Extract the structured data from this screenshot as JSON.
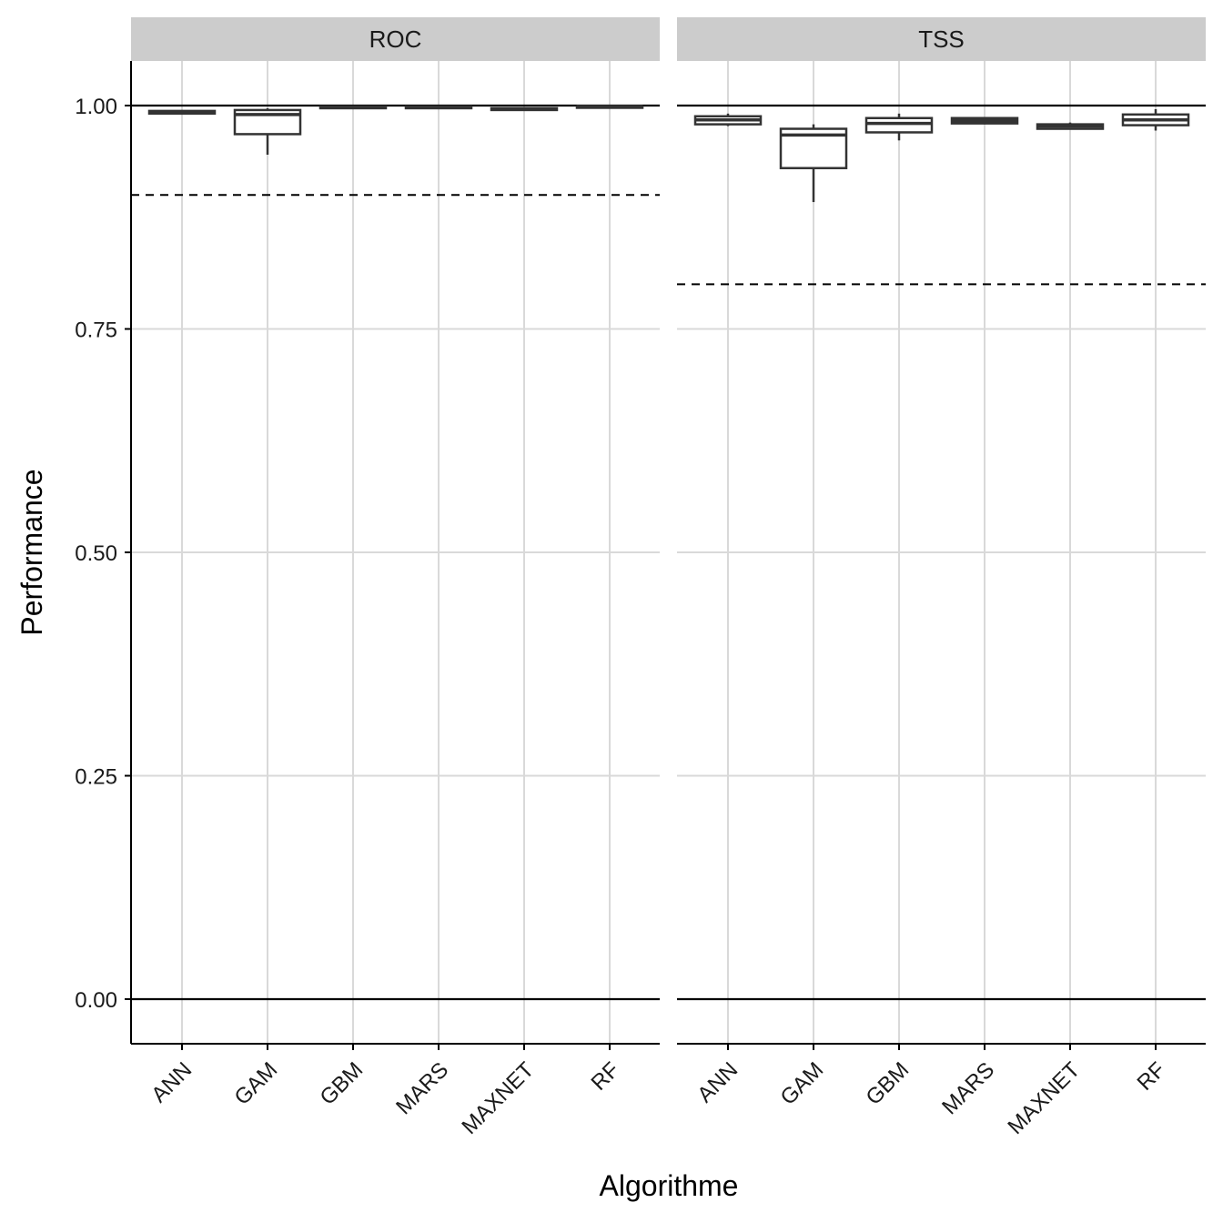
{
  "chart_data": {
    "type": "boxplot",
    "xlabel": "Algorithme",
    "ylabel": "Performance",
    "ylim": [
      -0.05,
      1.05
    ],
    "yticks": [
      "0.00",
      "0.25",
      "0.50",
      "0.75",
      "1.00"
    ],
    "ytick_values": [
      0,
      0.25,
      0.5,
      0.75,
      1.0
    ],
    "grid": true,
    "categories": [
      "ANN",
      "GAM",
      "GBM",
      "MARS",
      "MAXNET",
      "RF"
    ],
    "reference_lines": {
      "solid": [
        0,
        1
      ]
    },
    "panels": [
      {
        "name": "ROC",
        "threshold": 0.9,
        "boxes": [
          {
            "category": "ANN",
            "min": 0.99,
            "q1": 0.991,
            "median": 0.992,
            "q3": 0.994,
            "max": 0.995
          },
          {
            "category": "GAM",
            "min": 0.945,
            "q1": 0.968,
            "median": 0.99,
            "q3": 0.995,
            "max": 0.997
          },
          {
            "category": "GBM",
            "min": 0.996,
            "q1": 0.997,
            "median": 0.998,
            "q3": 0.999,
            "max": 0.999
          },
          {
            "category": "MARS",
            "min": 0.996,
            "q1": 0.997,
            "median": 0.998,
            "q3": 0.999,
            "max": 0.999
          },
          {
            "category": "MAXNET",
            "min": 0.994,
            "q1": 0.995,
            "median": 0.996,
            "q3": 0.997,
            "max": 0.998
          },
          {
            "category": "RF",
            "min": 0.998,
            "q1": 0.998,
            "median": 0.999,
            "q3": 0.999,
            "max": 1.0
          }
        ]
      },
      {
        "name": "TSS",
        "threshold": 0.8,
        "boxes": [
          {
            "category": "ANN",
            "min": 0.977,
            "q1": 0.979,
            "median": 0.984,
            "q3": 0.988,
            "max": 0.991
          },
          {
            "category": "GAM",
            "min": 0.892,
            "q1": 0.93,
            "median": 0.967,
            "q3": 0.974,
            "max": 0.979
          },
          {
            "category": "GBM",
            "min": 0.961,
            "q1": 0.97,
            "median": 0.98,
            "q3": 0.986,
            "max": 0.991
          },
          {
            "category": "MARS",
            "min": 0.979,
            "q1": 0.98,
            "median": 0.983,
            "q3": 0.986,
            "max": 0.987
          },
          {
            "category": "MAXNET",
            "min": 0.973,
            "q1": 0.974,
            "median": 0.977,
            "q3": 0.979,
            "max": 0.981
          },
          {
            "category": "RF",
            "min": 0.972,
            "q1": 0.978,
            "median": 0.984,
            "q3": 0.99,
            "max": 0.996
          }
        ]
      }
    ]
  },
  "colors": {
    "background": "#ffffff",
    "strip": "#cccccc",
    "grid": "#d9d9d9",
    "axis": "#000000",
    "box": "#333333"
  }
}
